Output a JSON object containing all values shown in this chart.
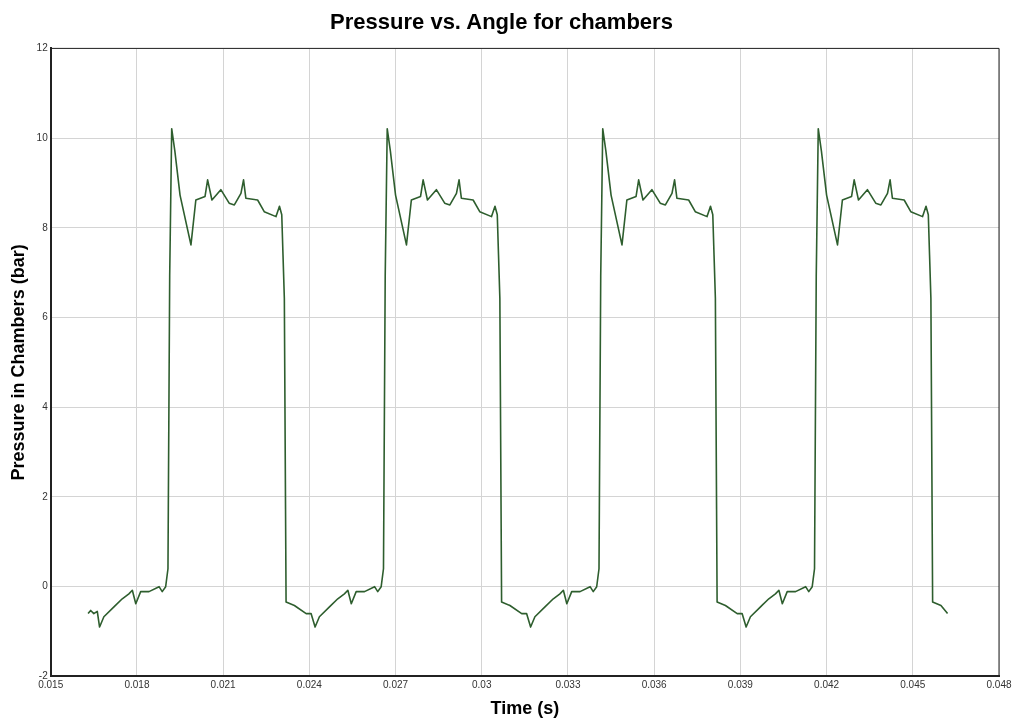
{
  "chart_data": {
    "type": "line",
    "title": "Pressure vs. Angle for chambers",
    "xlabel": "Time (s)",
    "ylabel": "Pressure in Chambers (bar)",
    "xlim": [
      0.015,
      0.048
    ],
    "xticks": [
      0.015,
      0.018,
      0.021,
      0.024,
      0.027,
      0.03,
      0.033,
      0.036,
      0.039,
      0.042,
      0.045,
      0.048
    ],
    "ylim": [
      -2,
      12
    ],
    "yticks": [
      -2,
      0,
      2,
      4,
      6,
      8,
      10,
      12
    ],
    "grid": true,
    "legend": false,
    "marker": "none",
    "line_style": "solid",
    "series": [
      {
        "color": "#2e5e2e",
        "x": [
          0.0163,
          0.01639,
          0.0165,
          0.01662,
          0.0167,
          0.01685,
          0.0172,
          0.01749,
          0.01772,
          0.01784,
          0.01796,
          0.01813,
          0.01842,
          0.01877,
          0.01888,
          0.019,
          0.01908,
          0.01914,
          0.01921,
          0.01932,
          0.0195,
          0.01988,
          0.02005,
          0.02037,
          0.02046,
          0.02061,
          0.02092,
          0.02121,
          0.02139,
          0.02162,
          0.02171,
          0.02179,
          0.0222,
          0.02243,
          0.02284,
          0.02296,
          0.02304,
          0.02313,
          0.02319,
          0.02348,
          0.02389,
          0.02406,
          0.0242,
          0.02435,
          0.0247,
          0.02499,
          0.02522,
          0.02534,
          0.02546,
          0.02563,
          0.02592,
          0.02627,
          0.02638,
          0.0265,
          0.02658,
          0.02664,
          0.02671,
          0.02682,
          0.027,
          0.02738,
          0.02755,
          0.02787,
          0.02796,
          0.02811,
          0.02842,
          0.02871,
          0.02889,
          0.02912,
          0.02921,
          0.02929,
          0.0297,
          0.02993,
          0.03034,
          0.03046,
          0.03054,
          0.03063,
          0.03069,
          0.03098,
          0.03139,
          0.03156,
          0.0317,
          0.03185,
          0.0322,
          0.03249,
          0.03272,
          0.03284,
          0.03296,
          0.03313,
          0.03342,
          0.03377,
          0.03388,
          0.034,
          0.03408,
          0.03414,
          0.03421,
          0.03432,
          0.0345,
          0.03488,
          0.03505,
          0.03537,
          0.03546,
          0.03561,
          0.03592,
          0.03621,
          0.03639,
          0.03662,
          0.03671,
          0.03679,
          0.0372,
          0.03743,
          0.03784,
          0.03796,
          0.03804,
          0.03813,
          0.03819,
          0.03848,
          0.03889,
          0.03906,
          0.0392,
          0.03935,
          0.0397,
          0.03999,
          0.04022,
          0.04034,
          0.04046,
          0.04063,
          0.04092,
          0.04127,
          0.04138,
          0.0415,
          0.04158,
          0.04164,
          0.04171,
          0.04182,
          0.042,
          0.04238,
          0.04255,
          0.04287,
          0.04296,
          0.04311,
          0.04342,
          0.04371,
          0.04389,
          0.04412,
          0.04421,
          0.04429,
          0.0447,
          0.04493,
          0.04534,
          0.04546,
          0.04554,
          0.04563,
          0.04569,
          0.04598,
          0.04621
        ],
        "values": [
          -0.6,
          -0.53,
          -0.6,
          -0.55,
          -0.9,
          -0.67,
          -0.45,
          -0.27,
          -0.16,
          -0.08,
          -0.38,
          -0.11,
          -0.11,
          0,
          -0.11,
          0,
          0.4,
          6.92,
          10.21,
          9.71,
          8.73,
          7.62,
          8.62,
          8.7,
          9.07,
          8.62,
          8.85,
          8.55,
          8.51,
          8.77,
          9.07,
          8.66,
          8.62,
          8.36,
          8.25,
          8.48,
          8.29,
          6.43,
          -0.34,
          -0.42,
          -0.6,
          -0.6,
          -0.9,
          -0.67,
          -0.45,
          -0.27,
          -0.16,
          -0.08,
          -0.38,
          -0.11,
          -0.11,
          0,
          -0.11,
          0,
          0.4,
          6.92,
          10.21,
          9.71,
          8.73,
          7.62,
          8.62,
          8.7,
          9.07,
          8.62,
          8.85,
          8.55,
          8.51,
          8.77,
          9.07,
          8.66,
          8.62,
          8.36,
          8.25,
          8.48,
          8.29,
          6.43,
          -0.34,
          -0.42,
          -0.6,
          -0.6,
          -0.9,
          -0.67,
          -0.45,
          -0.27,
          -0.16,
          -0.08,
          -0.38,
          -0.11,
          -0.11,
          0,
          -0.11,
          0,
          0.4,
          6.92,
          10.21,
          9.71,
          8.73,
          7.62,
          8.62,
          8.7,
          9.07,
          8.62,
          8.85,
          8.55,
          8.51,
          8.77,
          9.07,
          8.66,
          8.62,
          8.36,
          8.25,
          8.48,
          8.29,
          6.43,
          -0.34,
          -0.42,
          -0.6,
          -0.6,
          -0.9,
          -0.67,
          -0.45,
          -0.27,
          -0.16,
          -0.08,
          -0.38,
          -0.11,
          -0.11,
          0,
          -0.11,
          0,
          0.4,
          6.92,
          10.21,
          9.71,
          8.73,
          7.62,
          8.62,
          8.7,
          9.07,
          8.62,
          8.85,
          8.55,
          8.51,
          8.77,
          9.07,
          8.66,
          8.62,
          8.36,
          8.25,
          8.48,
          8.29,
          6.43,
          -0.34,
          -0.42,
          -0.6
        ]
      }
    ]
  }
}
